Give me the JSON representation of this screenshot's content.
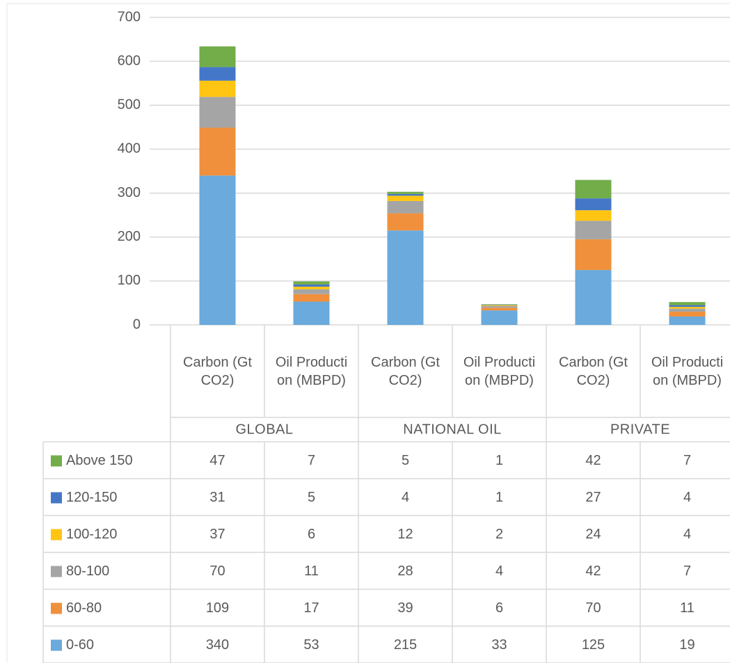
{
  "chart_data": {
    "type": "stacked_bar",
    "categories": [
      "Carbon (GtCO2)",
      "Oil Production (MBPD)",
      "Carbon (GtCO2)",
      "Oil Production (MBPD)",
      "Carbon (GtCO2)",
      "Oil Production (MBPD)"
    ],
    "groups": [
      "GLOBAL",
      "NATIONAL OIL",
      "PRIVATE"
    ],
    "series": [
      {
        "name": "0-60",
        "color": "#6aaadc",
        "values": [
          340,
          53,
          215,
          33,
          125,
          19
        ]
      },
      {
        "name": "60-80",
        "color": "#f0903c",
        "values": [
          109,
          17,
          39,
          6,
          70,
          11
        ]
      },
      {
        "name": "80-100",
        "color": "#a5a5a5",
        "values": [
          70,
          11,
          28,
          4,
          42,
          7
        ]
      },
      {
        "name": "100-120",
        "color": "#ffc512",
        "values": [
          37,
          6,
          12,
          2,
          24,
          4
        ]
      },
      {
        "name": "120-150",
        "color": "#4577c8",
        "values": [
          31,
          5,
          4,
          1,
          27,
          4
        ]
      },
      {
        "name": "Above 150",
        "color": "#72ad4a",
        "values": [
          47,
          7,
          5,
          1,
          42,
          7
        ]
      }
    ],
    "ylim": [
      0,
      700
    ],
    "yticks": [
      0,
      100,
      200,
      300,
      400,
      500,
      600,
      700
    ],
    "grid": true,
    "data_table": true
  }
}
